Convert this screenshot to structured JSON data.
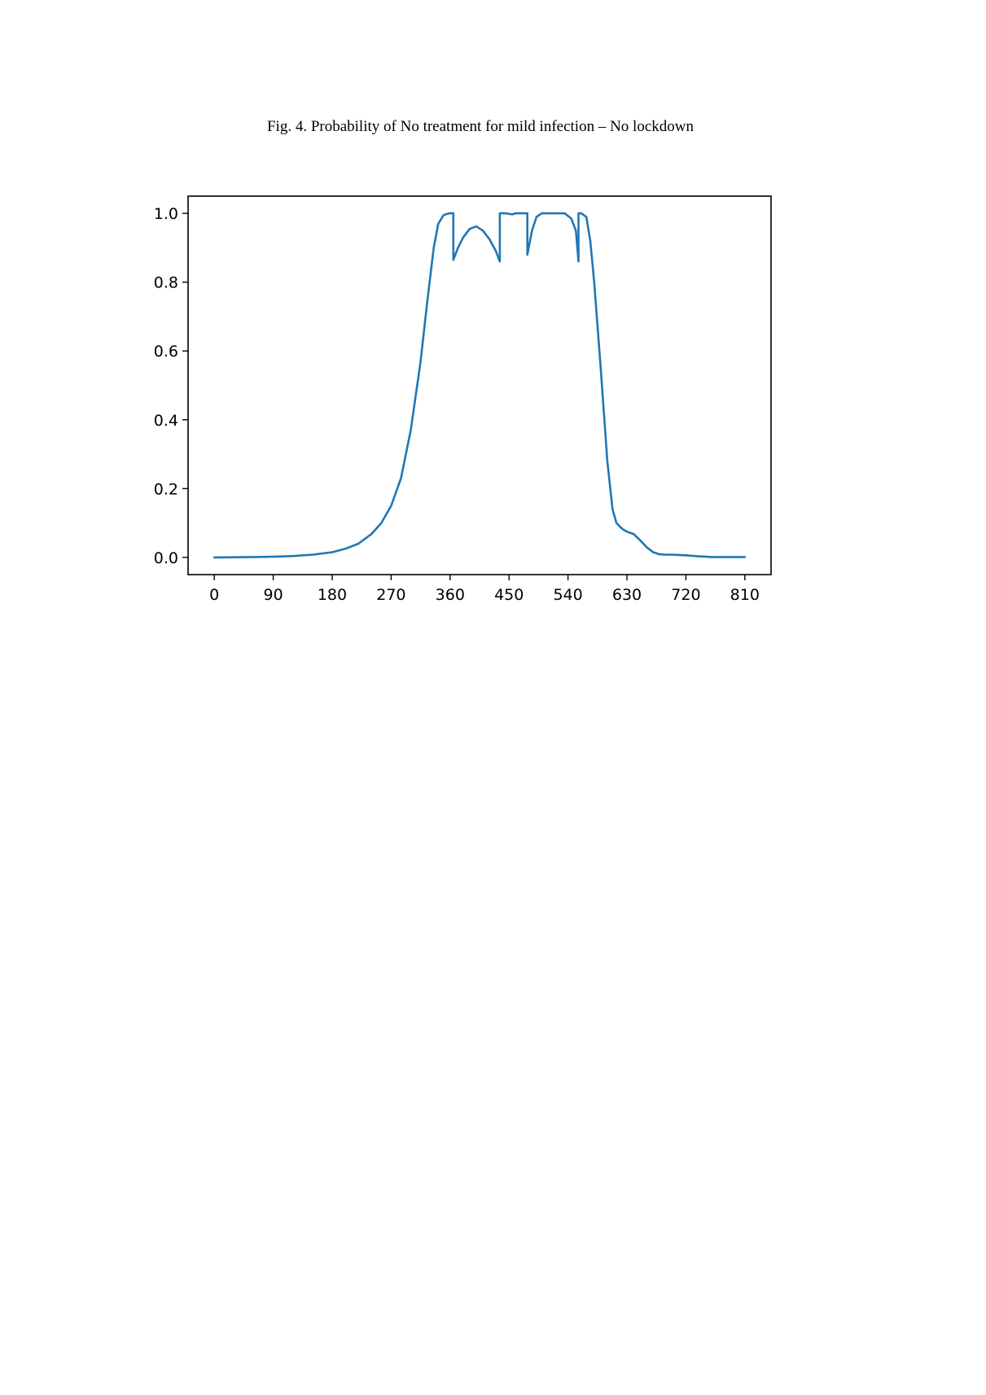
{
  "caption": "Fig. 4. Probability of No treatment for mild infection – No lockdown",
  "chart_data": {
    "type": "line",
    "title": "",
    "xlabel": "",
    "ylabel": "",
    "xlim": [
      -40,
      850
    ],
    "ylim": [
      -0.05,
      1.05
    ],
    "grid": false,
    "line_color": "#1f77b4",
    "xticks": [
      0,
      90,
      180,
      270,
      360,
      450,
      540,
      630,
      720,
      810
    ],
    "yticks": [
      0.0,
      0.2,
      0.4,
      0.6,
      0.8,
      1.0
    ],
    "ytick_labels": [
      "0.0",
      "0.2",
      "0.4",
      "0.6",
      "0.8",
      "1.0"
    ],
    "series": [
      {
        "x": [
          0,
          60,
          90,
          120,
          150,
          180,
          200,
          220,
          240,
          255,
          270,
          285,
          300,
          315,
          325,
          335,
          342,
          350,
          358,
          365,
          365,
          372,
          380,
          390,
          400,
          410,
          420,
          430,
          436,
          436,
          445,
          455,
          460,
          470,
          478,
          478,
          485,
          492,
          500,
          510,
          520,
          535,
          545,
          552,
          556,
          556,
          560,
          568,
          574,
          580,
          590,
          600,
          608,
          614,
          620,
          625,
          630,
          640,
          650,
          660,
          670,
          680,
          690,
          700,
          710,
          720,
          740,
          760,
          780,
          810
        ],
        "y": [
          0.0,
          0.001,
          0.002,
          0.004,
          0.008,
          0.015,
          0.025,
          0.04,
          0.068,
          0.1,
          0.15,
          0.23,
          0.37,
          0.57,
          0.74,
          0.9,
          0.97,
          0.995,
          1.0,
          1.0,
          0.865,
          0.9,
          0.93,
          0.955,
          0.962,
          0.95,
          0.925,
          0.89,
          0.86,
          1.0,
          1.0,
          0.997,
          1.0,
          1.0,
          1.0,
          0.88,
          0.95,
          0.99,
          1.0,
          1.0,
          1.0,
          1.0,
          0.985,
          0.95,
          0.86,
          1.0,
          1.0,
          0.99,
          0.92,
          0.8,
          0.55,
          0.28,
          0.14,
          0.1,
          0.088,
          0.08,
          0.075,
          0.068,
          0.05,
          0.03,
          0.015,
          0.009,
          0.008,
          0.008,
          0.007,
          0.006,
          0.003,
          0.001,
          0.001,
          0.001
        ]
      }
    ]
  }
}
